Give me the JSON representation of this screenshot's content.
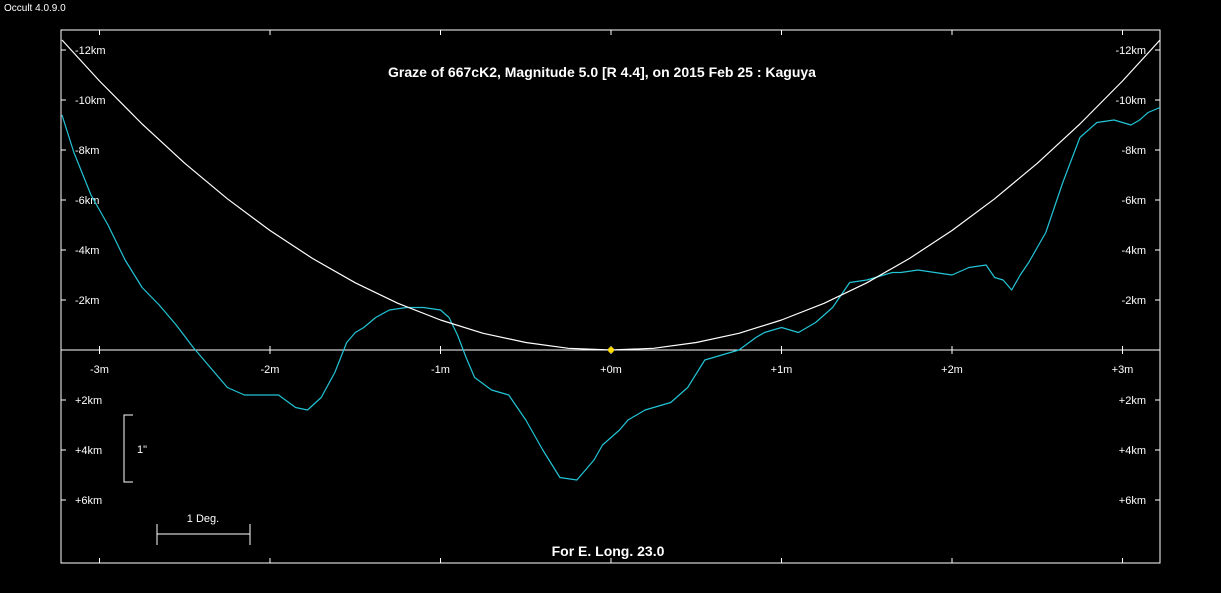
{
  "app": {
    "version_label": "Occult 4.0.9.0"
  },
  "colors": {
    "background": "#000000",
    "frame": "#ffffff",
    "profile": "#22c4d6",
    "limb_curve": "#ffffff",
    "center_point": "#ffdd00"
  },
  "chart_data": {
    "type": "line",
    "title": "Graze of  667cK2,  Magnitude 5.0 [R 4.4],  on 2015 Feb 25  :  Kaguya",
    "footer": "For E. Long. 23.0",
    "xlabel": "",
    "ylabel": "",
    "x_unit": "m",
    "y_unit": "km",
    "xlim": [
      -3.22,
      3.22
    ],
    "ylim": [
      -13.0,
      8.5
    ],
    "x_ticks": [
      {
        "value": -3,
        "label": "-3m"
      },
      {
        "value": -2,
        "label": "-2m"
      },
      {
        "value": -1,
        "label": "-1m"
      },
      {
        "value": 0,
        "label": "+0m"
      },
      {
        "value": 1,
        "label": "+1m"
      },
      {
        "value": 2,
        "label": "+2m"
      },
      {
        "value": 3,
        "label": "+3m"
      }
    ],
    "y_ticks": [
      {
        "value": -12,
        "label": "-12km"
      },
      {
        "value": -10,
        "label": "-10km"
      },
      {
        "value": -8,
        "label": "-8km"
      },
      {
        "value": -6,
        "label": "-6km"
      },
      {
        "value": -4,
        "label": "-4km"
      },
      {
        "value": -2,
        "label": "-2km"
      },
      {
        "value": 2,
        "label": "+2km"
      },
      {
        "value": 4,
        "label": "+4km"
      },
      {
        "value": 6,
        "label": "+6km"
      }
    ],
    "scale_bar_vertical": {
      "label": "1\""
    },
    "scale_bar_horizontal": {
      "label": "1 Deg."
    },
    "center_point": {
      "x": 0,
      "y": 0
    },
    "series": [
      {
        "style": "profile",
        "x": [
          -3.22,
          -3.15,
          -3.05,
          -2.95,
          -2.85,
          -2.75,
          -2.65,
          -2.55,
          -2.45,
          -2.35,
          -2.25,
          -2.15,
          -2.05,
          -1.95,
          -1.85,
          -1.78,
          -1.7,
          -1.62,
          -1.55,
          -1.5,
          -1.45,
          -1.38,
          -1.3,
          -1.2,
          -1.1,
          -1.0,
          -0.95,
          -0.9,
          -0.85,
          -0.8,
          -0.7,
          -0.6,
          -0.5,
          -0.4,
          -0.3,
          -0.2,
          -0.1,
          -0.05,
          0.0,
          0.05,
          0.1,
          0.2,
          0.3,
          0.35,
          0.45,
          0.55,
          0.65,
          0.75,
          0.85,
          0.9,
          1.0,
          1.1,
          1.2,
          1.3,
          1.4,
          1.5,
          1.6,
          1.65,
          1.7,
          1.8,
          1.9,
          2.0,
          2.1,
          2.2,
          2.25,
          2.3,
          2.35,
          2.4,
          2.45,
          2.55,
          2.65,
          2.75,
          2.85,
          2.95,
          3.05,
          3.1,
          3.15,
          3.22
        ],
        "y": [
          -9.4,
          -7.9,
          -6.2,
          -5.0,
          -3.6,
          -2.5,
          -1.8,
          -1.0,
          -0.1,
          0.7,
          1.5,
          1.8,
          1.8,
          1.8,
          2.3,
          2.4,
          1.9,
          0.9,
          -0.3,
          -0.7,
          -0.9,
          -1.3,
          -1.6,
          -1.7,
          -1.7,
          -1.6,
          -1.3,
          -0.6,
          0.3,
          1.1,
          1.6,
          1.8,
          2.8,
          4.0,
          5.1,
          5.2,
          4.4,
          3.8,
          3.5,
          3.2,
          2.8,
          2.4,
          2.2,
          2.1,
          1.5,
          0.4,
          0.2,
          0.0,
          -0.5,
          -0.7,
          -0.9,
          -0.7,
          -1.1,
          -1.7,
          -2.7,
          -2.8,
          -3.0,
          -3.1,
          -3.1,
          -3.2,
          -3.1,
          -3.0,
          -3.3,
          -3.4,
          -2.9,
          -2.8,
          -2.4,
          -3.0,
          -3.5,
          -4.7,
          -6.7,
          -8.5,
          -9.1,
          -9.2,
          -9.0,
          -9.2,
          -9.5,
          -9.7
        ]
      },
      {
        "style": "limb_curve",
        "x": [
          -3.22,
          -3.0,
          -2.75,
          -2.5,
          -2.25,
          -2.0,
          -1.75,
          -1.5,
          -1.25,
          -1.0,
          -0.75,
          -0.5,
          -0.25,
          0.0,
          0.25,
          0.5,
          0.75,
          1.0,
          1.25,
          1.5,
          1.75,
          2.0,
          2.25,
          2.5,
          2.75,
          3.0,
          3.22
        ],
        "y": [
          -12.4,
          -10.76,
          -9.04,
          -7.47,
          -6.05,
          -4.78,
          -3.66,
          -2.69,
          -1.87,
          -1.2,
          -0.67,
          -0.3,
          -0.07,
          0.0,
          -0.07,
          -0.3,
          -0.67,
          -1.2,
          -1.87,
          -2.69,
          -3.66,
          -4.78,
          -6.05,
          -7.47,
          -9.04,
          -10.76,
          -12.4
        ]
      }
    ]
  }
}
